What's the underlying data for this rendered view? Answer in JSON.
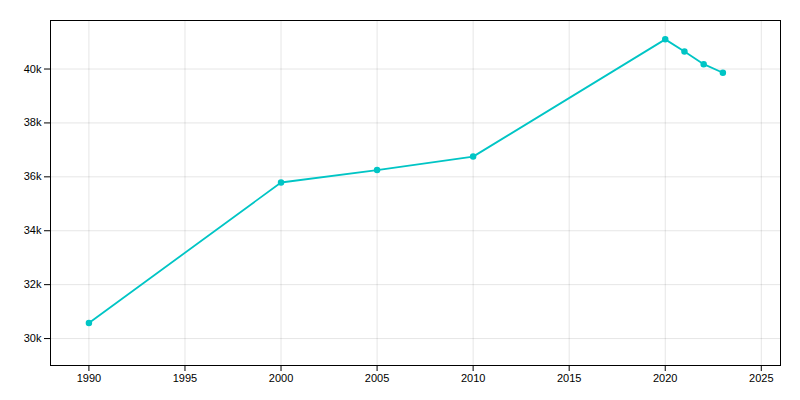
{
  "chart_data": {
    "type": "line",
    "x": [
      1990,
      2000,
      2005,
      2010,
      2020,
      2021,
      2022,
      2023
    ],
    "values": [
      30576,
      35790,
      36250,
      36750,
      41100,
      40650,
      40180,
      39860
    ],
    "color": "#00C5C5",
    "marker": "circle",
    "xlim": [
      1988,
      2026
    ],
    "xticks": [
      1990,
      1995,
      2000,
      2005,
      2010,
      2015,
      2020,
      2025
    ],
    "ylim": [
      29000,
      41800
    ],
    "yticks": [
      {
        "value": 30000,
        "label": "30k"
      },
      {
        "value": 32000,
        "label": "32k"
      },
      {
        "value": 34000,
        "label": "34k"
      },
      {
        "value": 36000,
        "label": "36k"
      },
      {
        "value": 38000,
        "label": "38k"
      },
      {
        "value": 40000,
        "label": "40k"
      }
    ],
    "grid": true
  }
}
